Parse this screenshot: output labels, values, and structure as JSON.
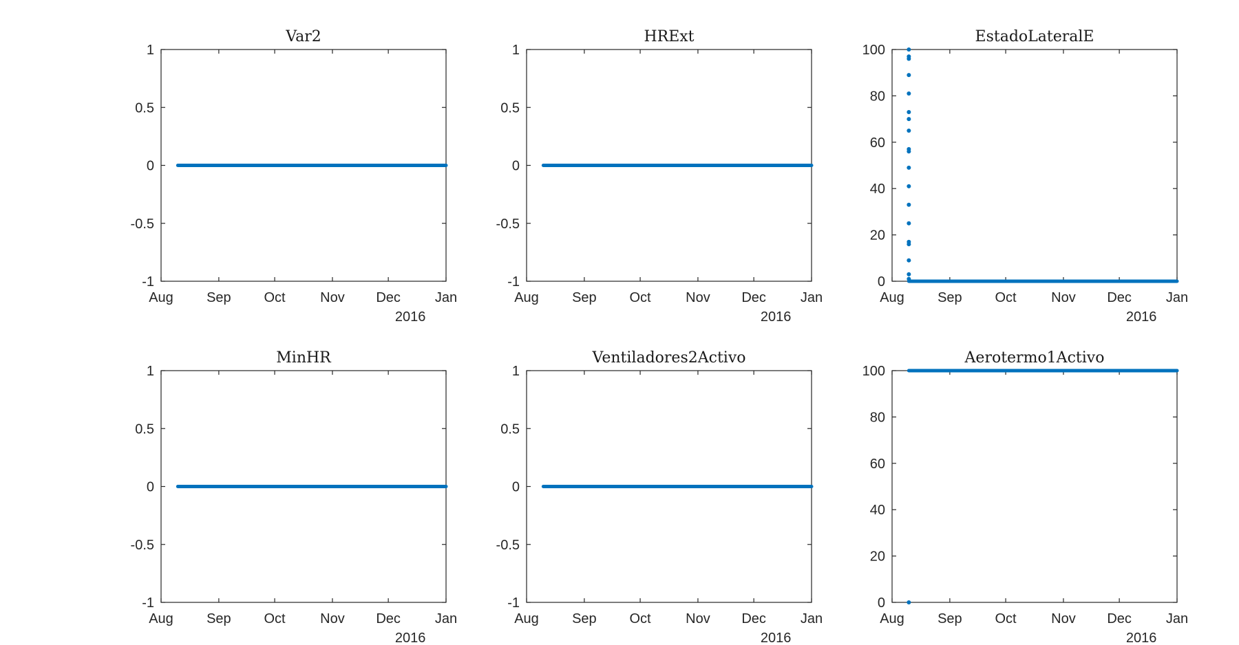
{
  "chart_data": [
    {
      "type": "scatter",
      "title": "Var2",
      "ylim": [
        -1,
        1
      ],
      "yticks": [
        "-1",
        "-0.5",
        "0",
        "0.5",
        "1"
      ],
      "ytick_values": [
        -1,
        -0.5,
        0,
        0.5,
        1
      ],
      "xlim": [
        "2016-07-31",
        "2016-12-31"
      ],
      "xticks": [
        "Aug",
        "Sep",
        "Oct",
        "Nov",
        "Dec",
        "Jan"
      ],
      "xtick_dates": [
        "2016-07-31",
        "2016-08-31",
        "2016-09-30",
        "2016-10-31",
        "2016-11-30",
        "2016-12-31"
      ],
      "year_label": "2016",
      "series": [
        {
          "kind": "constant",
          "x_start": "2016-08-09",
          "x_end": "2016-12-31",
          "y": 0
        }
      ],
      "points": []
    },
    {
      "type": "scatter",
      "title": "HRExt",
      "ylim": [
        -1,
        1
      ],
      "yticks": [
        "-1",
        "-0.5",
        "0",
        "0.5",
        "1"
      ],
      "ytick_values": [
        -1,
        -0.5,
        0,
        0.5,
        1
      ],
      "xlim": [
        "2016-07-31",
        "2016-12-31"
      ],
      "xticks": [
        "Aug",
        "Sep",
        "Oct",
        "Nov",
        "Dec",
        "Jan"
      ],
      "xtick_dates": [
        "2016-07-31",
        "2016-08-31",
        "2016-09-30",
        "2016-10-31",
        "2016-11-30",
        "2016-12-31"
      ],
      "year_label": "2016",
      "series": [
        {
          "kind": "constant",
          "x_start": "2016-08-09",
          "x_end": "2016-12-31",
          "y": 0
        }
      ],
      "points": []
    },
    {
      "type": "scatter",
      "title": "EstadoLateralE",
      "ylim": [
        0,
        100
      ],
      "yticks": [
        "0",
        "20",
        "40",
        "60",
        "80",
        "100"
      ],
      "ytick_values": [
        0,
        20,
        40,
        60,
        80,
        100
      ],
      "xlim": [
        "2016-07-31",
        "2016-12-31"
      ],
      "xticks": [
        "Aug",
        "Sep",
        "Oct",
        "Nov",
        "Dec",
        "Jan"
      ],
      "xtick_dates": [
        "2016-07-31",
        "2016-08-31",
        "2016-09-30",
        "2016-10-31",
        "2016-11-30",
        "2016-12-31"
      ],
      "year_label": "2016",
      "series": [
        {
          "kind": "constant",
          "x_start": "2016-08-09",
          "x_end": "2016-12-31",
          "y": 0
        }
      ],
      "points": [
        {
          "x": "2016-08-09",
          "y": 100
        },
        {
          "x": "2016-08-09",
          "y": 97
        },
        {
          "x": "2016-08-09",
          "y": 96
        },
        {
          "x": "2016-08-09",
          "y": 89
        },
        {
          "x": "2016-08-09",
          "y": 81
        },
        {
          "x": "2016-08-09",
          "y": 73
        },
        {
          "x": "2016-08-09",
          "y": 70
        },
        {
          "x": "2016-08-09",
          "y": 65
        },
        {
          "x": "2016-08-09",
          "y": 57
        },
        {
          "x": "2016-08-09",
          "y": 56
        },
        {
          "x": "2016-08-09",
          "y": 49
        },
        {
          "x": "2016-08-09",
          "y": 41
        },
        {
          "x": "2016-08-09",
          "y": 33
        },
        {
          "x": "2016-08-09",
          "y": 25
        },
        {
          "x": "2016-08-09",
          "y": 17
        },
        {
          "x": "2016-08-09",
          "y": 16
        },
        {
          "x": "2016-08-09",
          "y": 9
        },
        {
          "x": "2016-08-09",
          "y": 3
        },
        {
          "x": "2016-08-09",
          "y": 1
        }
      ]
    },
    {
      "type": "scatter",
      "title": "MinHR",
      "ylim": [
        -1,
        1
      ],
      "yticks": [
        "-1",
        "-0.5",
        "0",
        "0.5",
        "1"
      ],
      "ytick_values": [
        -1,
        -0.5,
        0,
        0.5,
        1
      ],
      "xlim": [
        "2016-07-31",
        "2016-12-31"
      ],
      "xticks": [
        "Aug",
        "Sep",
        "Oct",
        "Nov",
        "Dec",
        "Jan"
      ],
      "xtick_dates": [
        "2016-07-31",
        "2016-08-31",
        "2016-09-30",
        "2016-10-31",
        "2016-11-30",
        "2016-12-31"
      ],
      "year_label": "2016",
      "series": [
        {
          "kind": "constant",
          "x_start": "2016-08-09",
          "x_end": "2016-12-31",
          "y": 0
        }
      ],
      "points": []
    },
    {
      "type": "scatter",
      "title": "Ventiladores2Activo",
      "ylim": [
        -1,
        1
      ],
      "yticks": [
        "-1",
        "-0.5",
        "0",
        "0.5",
        "1"
      ],
      "ytick_values": [
        -1,
        -0.5,
        0,
        0.5,
        1
      ],
      "xlim": [
        "2016-07-31",
        "2016-12-31"
      ],
      "xticks": [
        "Aug",
        "Sep",
        "Oct",
        "Nov",
        "Dec",
        "Jan"
      ],
      "xtick_dates": [
        "2016-07-31",
        "2016-08-31",
        "2016-09-30",
        "2016-10-31",
        "2016-11-30",
        "2016-12-31"
      ],
      "year_label": "2016",
      "series": [
        {
          "kind": "constant",
          "x_start": "2016-08-09",
          "x_end": "2016-12-31",
          "y": 0
        }
      ],
      "points": []
    },
    {
      "type": "scatter",
      "title": "Aerotermo1Activo",
      "ylim": [
        0,
        100
      ],
      "yticks": [
        "0",
        "20",
        "40",
        "60",
        "80",
        "100"
      ],
      "ytick_values": [
        0,
        20,
        40,
        60,
        80,
        100
      ],
      "xlim": [
        "2016-07-31",
        "2016-12-31"
      ],
      "xticks": [
        "Aug",
        "Sep",
        "Oct",
        "Nov",
        "Dec",
        "Jan"
      ],
      "xtick_dates": [
        "2016-07-31",
        "2016-08-31",
        "2016-09-30",
        "2016-10-31",
        "2016-11-30",
        "2016-12-31"
      ],
      "year_label": "2016",
      "series": [
        {
          "kind": "constant",
          "x_start": "2016-08-09",
          "x_end": "2016-12-31",
          "y": 100
        }
      ],
      "points": [
        {
          "x": "2016-08-09",
          "y": 0
        }
      ]
    }
  ],
  "colors": {
    "marker": "#0072bd"
  }
}
